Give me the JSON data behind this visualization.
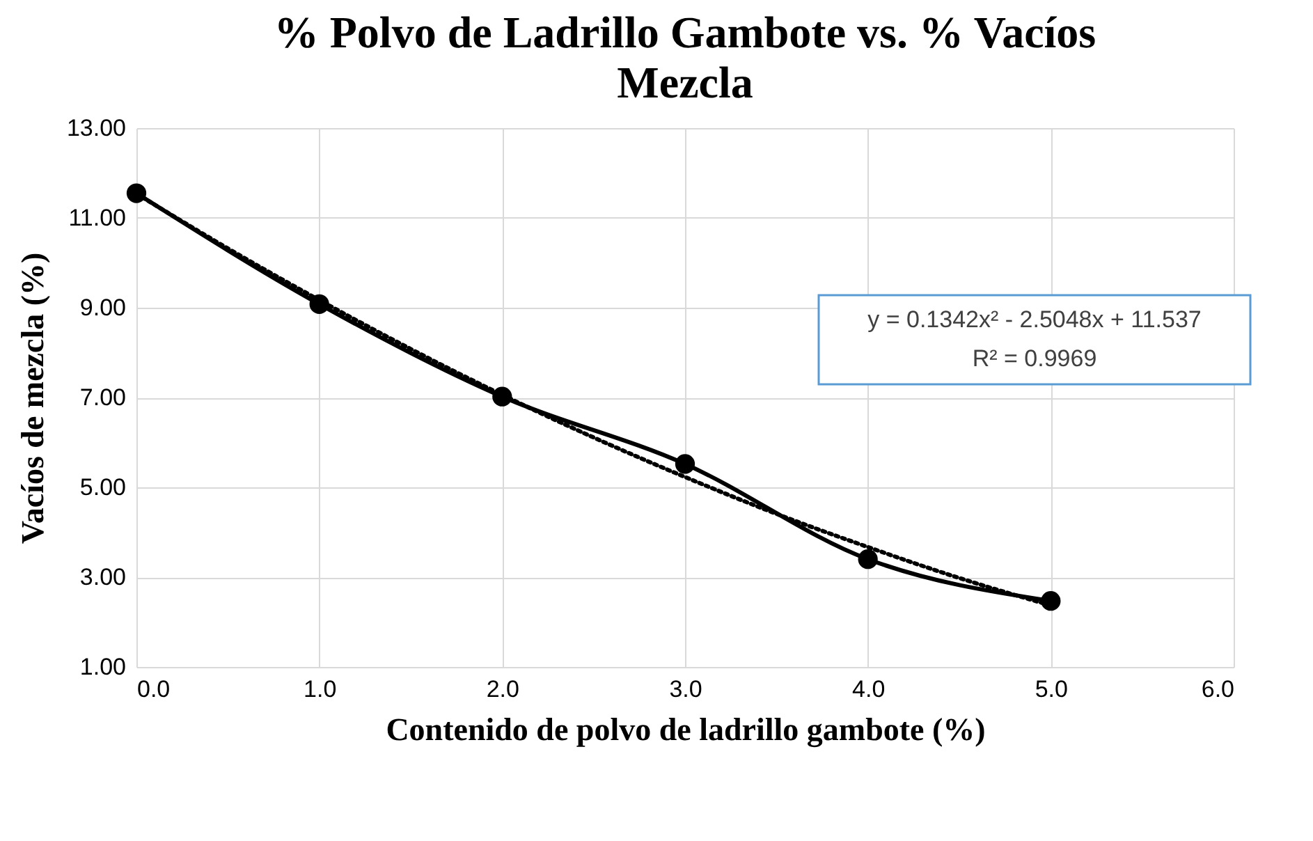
{
  "chart_data": {
    "type": "line",
    "title": "% Polvo de Ladrillo Gambote  vs. % Vacíos Mezcla",
    "xlabel": "Contenido de polvo de ladrillo gambote (%)",
    "ylabel": "Vacíos de mezcla (%)",
    "x": [
      0,
      1,
      2,
      3,
      4,
      5
    ],
    "series": [
      {
        "color": "#000000",
        "values": [
          11.55,
          9.08,
          7.02,
          5.52,
          3.4,
          2.47
        ],
        "marker": "circle",
        "line_style": "solid"
      },
      {
        "type": "line",
        "x": [
          0,
          0.5,
          1,
          1.5,
          2,
          2.5,
          3,
          3.5,
          4,
          4.5,
          5
        ],
        "values": [
          11.54,
          10.32,
          9.17,
          8.08,
          7.06,
          6.11,
          5.23,
          4.41,
          3.67,
          2.98,
          2.37
        ],
        "color": "#000000",
        "marker": "none",
        "line_style": "dotted"
      }
    ],
    "xlim": [
      0,
      6
    ],
    "xticks": [
      {
        "value": 0,
        "label": "0.0"
      },
      {
        "value": 1,
        "label": "1.0"
      },
      {
        "value": 2,
        "label": "2.0"
      },
      {
        "value": 3,
        "label": "3.0"
      },
      {
        "value": 4,
        "label": "4.0"
      },
      {
        "value": 5,
        "label": "5.0"
      },
      {
        "value": 6,
        "label": "6.0"
      }
    ],
    "ylim": [
      1,
      13
    ],
    "yticks": [
      {
        "value": 1,
        "label": "1.00"
      },
      {
        "value": 3,
        "label": "3.00"
      },
      {
        "value": 5,
        "label": "5.00"
      },
      {
        "value": 7,
        "label": "7.00"
      },
      {
        "value": 9,
        "label": "9.00"
      },
      {
        "value": 11,
        "label": "11.00"
      },
      {
        "value": 13,
        "label": "13.00"
      }
    ],
    "grid": true,
    "annotations": [
      "y = 0.1342x² - 2.5048x + 11.537",
      "R² = 0.9969"
    ]
  }
}
